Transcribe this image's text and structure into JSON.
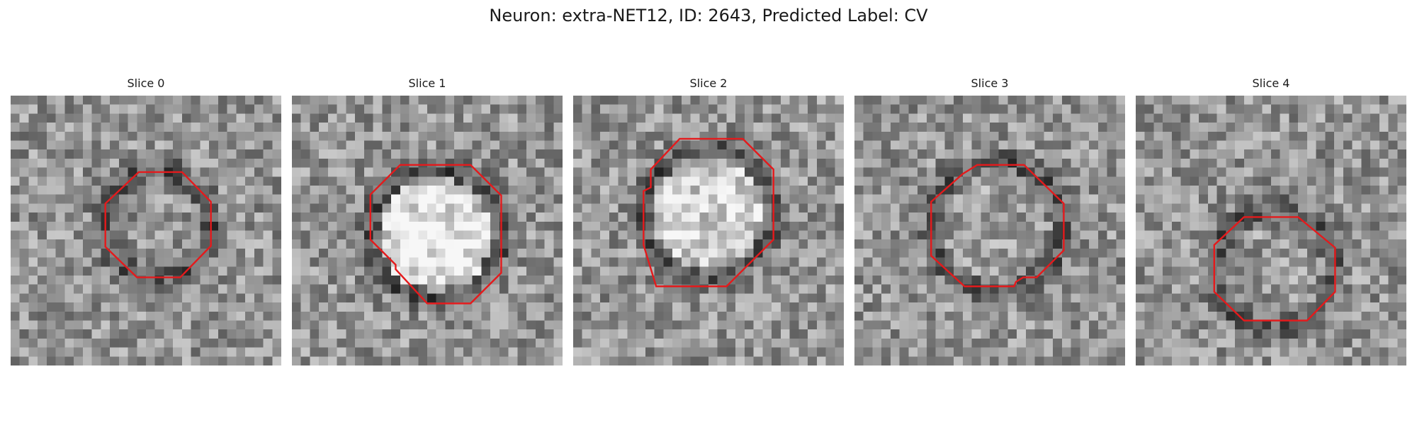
{
  "figure": {
    "title": "Neuron: extra-NET12, ID: 2643, Predicted Label: CV"
  },
  "slices": [
    {
      "label": "Slice 0",
      "seed": 11,
      "cell_brightness": 0.0
    },
    {
      "label": "Slice 1",
      "seed": 23,
      "cell_brightness": 0.35
    },
    {
      "label": "Slice 2",
      "seed": 37,
      "cell_brightness": 0.25
    },
    {
      "label": "Slice 3",
      "seed": 53,
      "cell_brightness": 0.05
    },
    {
      "label": "Slice 4",
      "seed": 71,
      "cell_brightness": 0.02
    }
  ],
  "colors": {
    "roi_outline": "#e41a1c",
    "background": "#ffffff"
  }
}
